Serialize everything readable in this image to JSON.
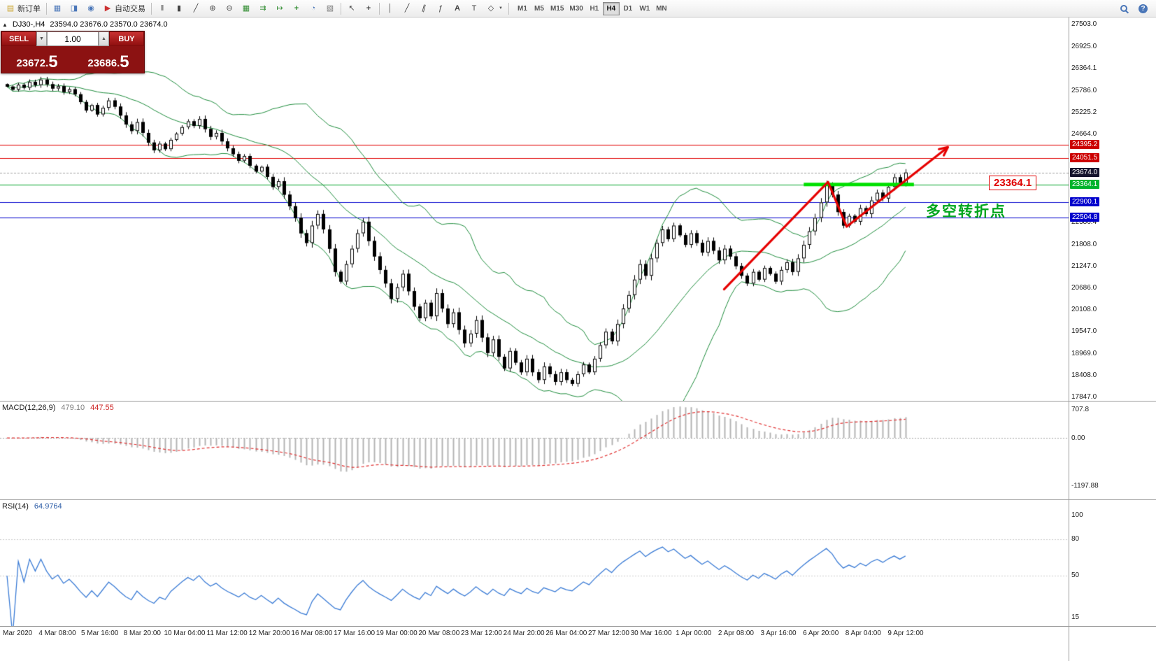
{
  "toolbar": {
    "new_order_label": "新订单",
    "auto_trading_label": "自动交易",
    "timeframes": [
      "M1",
      "M5",
      "M15",
      "M30",
      "H1",
      "H4",
      "D1",
      "W1",
      "MN"
    ],
    "active_timeframe": "H4"
  },
  "icons": {
    "caret_down_small": "▼",
    "caret_up_small": "▲",
    "collapse": "▲",
    "new_order": "▤",
    "chart_window": "▦",
    "profiles": "◨",
    "alerts": "◉",
    "auto_trading": "▶",
    "ohlc_bars": "‖",
    "candlesticks": "▮",
    "line_chart": "╱",
    "zoom_in": "⊕",
    "zoom_out": "⊖",
    "tile_windows": "▦",
    "auto_scroll": "⇉",
    "chart_shift": "↦",
    "indicators_plus": "+",
    "periods": "◔",
    "templates": "▧",
    "cursor": "↖",
    "crosshair": "+",
    "vline": "│",
    "trendline": "╱",
    "channel": "∥",
    "fibonacci": "ƒ",
    "text": "A",
    "label": "T",
    "shapes": "◇",
    "question": "?"
  },
  "order_panel": {
    "sell_label": "SELL",
    "buy_label": "BUY",
    "volume": "1.00",
    "sell_price": "23672.",
    "sell_price_big": "5",
    "buy_price": "23686.",
    "buy_price_big": "5"
  },
  "chart_header": {
    "symbol": "DJ30-,H4",
    "ohlc": "23594.0 23676.0 23570.0 23674.0"
  },
  "indicators": {
    "macd_label": "MACD(12,26,9)",
    "macd_value1": "479.10",
    "macd_value2": "447.55",
    "rsi_label": "RSI(14)",
    "rsi_value": "64.9764"
  },
  "annotations": {
    "price_box": "23364.1",
    "turning_point_text": "多空转折点"
  },
  "chart_data": {
    "type": "candlestick",
    "symbol": "DJ30-",
    "timeframe": "H4",
    "ohlc_display": {
      "open": 23594.0,
      "high": 23676.0,
      "low": 23570.0,
      "close": 23674.0
    },
    "price_axis_range": [
      17760,
      27690
    ],
    "y_axis_grid_labels": [
      "27503.0",
      "26925.0",
      "26364.1",
      "25786.0",
      "25225.2",
      "24664.0",
      "22386.4",
      "21808.0",
      "21247.0",
      "20686.0",
      "20108.0",
      "19547.0",
      "18969.0",
      "18408.0",
      "17847.0"
    ],
    "levels": [
      {
        "value": 24395.2,
        "color": "#e00000",
        "tag_bg": "#cc0000",
        "tag_fg": "#ffffff"
      },
      {
        "value": 24051.5,
        "color": "#e00000",
        "tag_bg": "#cc0000",
        "tag_fg": "#ffffff"
      },
      {
        "value": 23674.0,
        "color": "#a0a0a0",
        "tag_bg": "#15152e",
        "tag_fg": "#ffffff",
        "dash": true
      },
      {
        "value": 23364.1,
        "color": "#00a22a",
        "tag_bg": "#00b32c",
        "tag_fg": "#ffffff"
      },
      {
        "value": 22900.1,
        "color": "#0000cc",
        "tag_bg": "#0000cc",
        "tag_fg": "#ffffff"
      },
      {
        "value": 22504.8,
        "color": "#0000cc",
        "tag_bg": "#0000cc",
        "tag_fg": "#ffffff"
      }
    ],
    "support_zone": {
      "value": 23364.1,
      "from_bar": 141,
      "to_bar": 160.5,
      "color": "#00e000"
    },
    "trend_arrow": {
      "color": "#e60000",
      "points_bar_price": [
        [
          126.9,
          20650
        ],
        [
          145.3,
          23430
        ],
        [
          148.6,
          22270
        ],
        [
          166.5,
          24330
        ]
      ]
    },
    "x_axis_labels": [
      "Mar 2020",
      "4 Mar 08:00",
      "5 Mar 16:00",
      "8 Mar 20:00",
      "10 Mar 04:00",
      "11 Mar 12:00",
      "12 Mar 20:00",
      "16 Mar 08:00",
      "17 Mar 16:00",
      "19 Mar 00:00",
      "20 Mar 08:00",
      "23 Mar 12:00",
      "24 Mar 20:00",
      "26 Mar 04:00",
      "27 Mar 12:00",
      "30 Mar 16:00",
      "1 Apr 00:00",
      "2 Apr 08:00",
      "3 Apr 16:00",
      "6 Apr 20:00",
      "8 Apr 04:00",
      "9 Apr 12:00"
    ],
    "bollinger": {
      "period": 20,
      "deviation": 2,
      "color": "#1e8c3c"
    },
    "macd": {
      "label": "MACD(12,26,9)",
      "values": [
        479.1,
        447.55
      ],
      "axis_labels": [
        "707.8",
        "0.00",
        "-1197.88"
      ]
    },
    "rsi": {
      "label": "RSI(14)",
      "value": 64.9764,
      "axis_labels": [
        "100",
        "80",
        "50",
        "15"
      ],
      "levels": [
        80,
        50
      ]
    },
    "closes": [
      25900,
      25820,
      25950,
      25870,
      26020,
      25940,
      26080,
      25960,
      25850,
      25910,
      25760,
      25830,
      25700,
      25500,
      25280,
      25420,
      25180,
      25350,
      25540,
      25380,
      25150,
      24920,
      24750,
      24980,
      24700,
      24450,
      24250,
      24420,
      24280,
      24520,
      24680,
      24850,
      25000,
      24880,
      25060,
      24800,
      24600,
      24700,
      24480,
      24300,
      24150,
      23980,
      24100,
      23850,
      23700,
      23820,
      23560,
      23300,
      23450,
      23100,
      22800,
      22500,
      22100,
      21850,
      22300,
      22600,
      22200,
      21700,
      21100,
      20850,
      21300,
      21700,
      22100,
      22400,
      21900,
      21500,
      21150,
      20800,
      20400,
      20700,
      21050,
      20600,
      20200,
      19900,
      20300,
      19950,
      20550,
      20150,
      19750,
      20050,
      19600,
      19250,
      19500,
      19850,
      19400,
      19000,
      19350,
      18900,
      18600,
      19050,
      18750,
      18500,
      18850,
      18500,
      18300,
      18650,
      18450,
      18250,
      18500,
      18300,
      18200,
      18450,
      18700,
      18500,
      18850,
      19200,
      19550,
      19300,
      19750,
      20150,
      20500,
      20900,
      21300,
      21000,
      21450,
      21850,
      22200,
      21950,
      22300,
      22050,
      21800,
      22100,
      21850,
      21600,
      21900,
      21650,
      21400,
      21700,
      21500,
      21250,
      21000,
      20800,
      21100,
      20900,
      21200,
      21050,
      20850,
      21150,
      21350,
      21100,
      21450,
      21800,
      22150,
      22500,
      22900,
      23350,
      23100,
      22650,
      22300,
      22550,
      22400,
      22750,
      22600,
      22950,
      23150,
      23000,
      23300,
      23550,
      23400,
      23674
    ]
  }
}
